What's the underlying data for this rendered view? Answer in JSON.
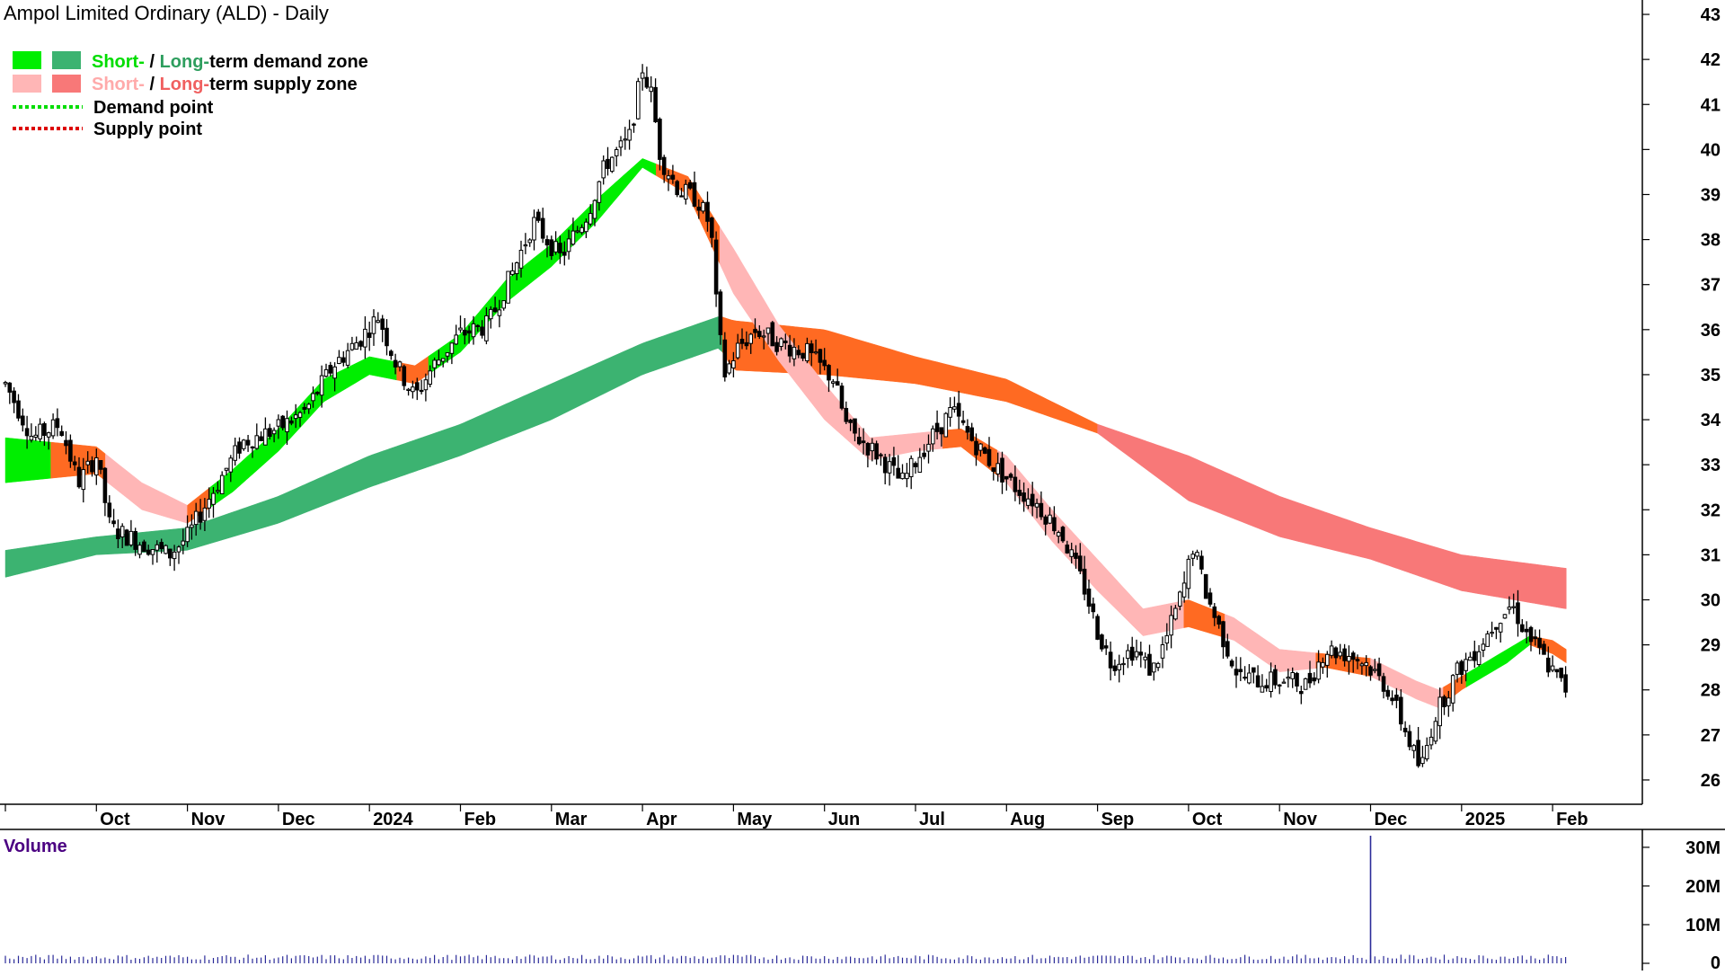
{
  "chart_data": {
    "type": "candlestick",
    "title": "Ampol Limited Ordinary (ALD) - Daily",
    "price_axis": {
      "ylim": [
        25.6,
        43.2
      ],
      "ticks": [
        26,
        27,
        28,
        29,
        30,
        31,
        32,
        33,
        34,
        35,
        36,
        37,
        38,
        39,
        40,
        41,
        42,
        43
      ]
    },
    "x_months": [
      {
        "label": "Oct",
        "m": 1
      },
      {
        "label": "Nov",
        "m": 2
      },
      {
        "label": "Dec",
        "m": 3
      },
      {
        "label": "2024",
        "m": 4
      },
      {
        "label": "Feb",
        "m": 5
      },
      {
        "label": "Mar",
        "m": 6
      },
      {
        "label": "Apr",
        "m": 7
      },
      {
        "label": "May",
        "m": 8
      },
      {
        "label": "Jun",
        "m": 9
      },
      {
        "label": "Jul",
        "m": 10
      },
      {
        "label": "Aug",
        "m": 11
      },
      {
        "label": "Sep",
        "m": 12
      },
      {
        "label": "Oct",
        "m": 13
      },
      {
        "label": "Nov",
        "m": 14
      },
      {
        "label": "Dec",
        "m": 15
      },
      {
        "label": "2025",
        "m": 16
      },
      {
        "label": "Feb",
        "m": 17
      }
    ],
    "price_keypoints": [
      [
        0.0,
        34.8
      ],
      [
        0.3,
        33.6
      ],
      [
        0.6,
        33.9
      ],
      [
        0.8,
        32.6
      ],
      [
        1.0,
        33.2
      ],
      [
        1.15,
        31.6
      ],
      [
        1.45,
        31.3
      ],
      [
        1.8,
        31.0
      ],
      [
        2.0,
        31.4
      ],
      [
        2.25,
        32.3
      ],
      [
        2.6,
        33.5
      ],
      [
        3.0,
        33.8
      ],
      [
        3.3,
        34.2
      ],
      [
        3.6,
        35.2
      ],
      [
        3.9,
        35.8
      ],
      [
        4.1,
        36.3
      ],
      [
        4.3,
        35.2
      ],
      [
        4.5,
        34.5
      ],
      [
        4.7,
        35.2
      ],
      [
        5.0,
        35.9
      ],
      [
        5.3,
        36.1
      ],
      [
        5.6,
        37.4
      ],
      [
        5.8,
        38.4
      ],
      [
        6.1,
        37.6
      ],
      [
        6.4,
        38.6
      ],
      [
        6.6,
        39.7
      ],
      [
        6.85,
        40.2
      ],
      [
        7.0,
        41.8
      ],
      [
        7.1,
        41.2
      ],
      [
        7.2,
        39.8
      ],
      [
        7.4,
        39.1
      ],
      [
        7.6,
        38.9
      ],
      [
        7.75,
        38.3
      ],
      [
        7.82,
        36.3
      ],
      [
        7.9,
        35.0
      ],
      [
        8.05,
        35.6
      ],
      [
        8.25,
        36.0
      ],
      [
        8.5,
        35.7
      ],
      [
        8.8,
        35.5
      ],
      [
        9.1,
        34.9
      ],
      [
        9.25,
        33.8
      ],
      [
        9.6,
        33.2
      ],
      [
        9.85,
        32.6
      ],
      [
        10.1,
        33.4
      ],
      [
        10.4,
        34.2
      ],
      [
        10.6,
        33.6
      ],
      [
        10.85,
        33.0
      ],
      [
        11.1,
        32.5
      ],
      [
        11.3,
        32.2
      ],
      [
        11.6,
        31.5
      ],
      [
        11.85,
        30.3
      ],
      [
        12.0,
        29.3
      ],
      [
        12.15,
        28.6
      ],
      [
        12.4,
        28.9
      ],
      [
        12.6,
        28.4
      ],
      [
        12.75,
        29.1
      ],
      [
        12.95,
        30.3
      ],
      [
        13.05,
        31.2
      ],
      [
        13.2,
        30.1
      ],
      [
        13.35,
        29.3
      ],
      [
        13.55,
        28.3
      ],
      [
        13.8,
        28.2
      ],
      [
        14.1,
        28.2
      ],
      [
        14.3,
        28.1
      ],
      [
        14.5,
        28.9
      ],
      [
        14.75,
        28.8
      ],
      [
        14.95,
        28.6
      ],
      [
        15.2,
        28.0
      ],
      [
        15.4,
        27.0
      ],
      [
        15.55,
        26.2
      ],
      [
        15.7,
        27.4
      ],
      [
        15.95,
        28.4
      ],
      [
        16.2,
        29.0
      ],
      [
        16.4,
        29.6
      ],
      [
        16.55,
        29.9
      ],
      [
        16.7,
        29.3
      ],
      [
        16.9,
        28.7
      ],
      [
        17.0,
        28.4
      ],
      [
        17.15,
        28.0
      ]
    ],
    "short_term_zone": [
      [
        0.0,
        32.6,
        33.6
      ],
      [
        1.0,
        32.8,
        33.4
      ],
      [
        1.5,
        32.0,
        32.6
      ],
      [
        2.0,
        31.7,
        32.1
      ],
      [
        2.5,
        32.4,
        32.9
      ],
      [
        3.0,
        33.3,
        33.8
      ],
      [
        3.5,
        34.4,
        34.9
      ],
      [
        4.0,
        35.0,
        35.4
      ],
      [
        4.5,
        34.8,
        35.2
      ],
      [
        5.0,
        35.5,
        35.9
      ],
      [
        5.5,
        36.6,
        37.1
      ],
      [
        6.0,
        37.4,
        37.9
      ],
      [
        6.5,
        38.4,
        38.9
      ],
      [
        7.0,
        39.6,
        39.8
      ],
      [
        7.5,
        39.0,
        39.4
      ],
      [
        8.0,
        36.8,
        37.8
      ],
      [
        8.5,
        35.3,
        36.1
      ],
      [
        9.0,
        34.0,
        34.8
      ],
      [
        9.5,
        33.1,
        33.6
      ],
      [
        10.0,
        33.3,
        33.7
      ],
      [
        10.5,
        33.4,
        33.8
      ],
      [
        11.0,
        32.6,
        33.2
      ],
      [
        11.5,
        31.3,
        32.0
      ],
      [
        12.0,
        30.2,
        30.9
      ],
      [
        12.5,
        29.2,
        29.8
      ],
      [
        13.0,
        29.4,
        30.0
      ],
      [
        13.5,
        29.1,
        29.6
      ],
      [
        14.0,
        28.4,
        28.9
      ],
      [
        14.5,
        28.5,
        28.8
      ],
      [
        15.0,
        28.3,
        28.7
      ],
      [
        15.5,
        27.8,
        28.2
      ],
      [
        15.75,
        27.6,
        28.0
      ],
      [
        16.0,
        28.0,
        28.3
      ],
      [
        16.5,
        28.6,
        28.9
      ],
      [
        16.75,
        29.0,
        29.2
      ],
      [
        17.0,
        28.8,
        29.1
      ],
      [
        17.15,
        28.6,
        28.9
      ]
    ],
    "long_term_zone": [
      [
        0.0,
        30.5,
        31.1
      ],
      [
        1.0,
        31.0,
        31.4
      ],
      [
        2.0,
        31.1,
        31.6
      ],
      [
        3.0,
        31.7,
        32.3
      ],
      [
        4.0,
        32.5,
        33.2
      ],
      [
        5.0,
        33.2,
        33.9
      ],
      [
        6.0,
        34.0,
        34.8
      ],
      [
        7.0,
        35.0,
        35.7
      ],
      [
        7.85,
        35.6,
        36.3
      ],
      [
        8.0,
        35.1,
        36.2
      ],
      [
        9.0,
        35.0,
        36.0
      ],
      [
        10.0,
        34.8,
        35.4
      ],
      [
        11.0,
        34.4,
        34.9
      ],
      [
        12.0,
        33.7,
        33.9
      ],
      [
        13.0,
        32.2,
        33.2
      ],
      [
        14.0,
        31.4,
        32.3
      ],
      [
        15.0,
        30.9,
        31.6
      ],
      [
        16.0,
        30.2,
        31.0
      ],
      [
        17.15,
        29.8,
        30.7
      ]
    ],
    "segments_short": [
      {
        "from": 0.0,
        "to": 0.5,
        "kind": "demand"
      },
      {
        "from": 0.5,
        "to": 1.1,
        "kind": "supply-dark"
      },
      {
        "from": 1.1,
        "to": 2.0,
        "kind": "supply-light"
      },
      {
        "from": 2.0,
        "to": 2.25,
        "kind": "supply-dark"
      },
      {
        "from": 2.25,
        "to": 4.3,
        "kind": "demand"
      },
      {
        "from": 4.3,
        "to": 4.65,
        "kind": "supply-dark"
      },
      {
        "from": 4.65,
        "to": 7.15,
        "kind": "demand"
      },
      {
        "from": 7.15,
        "to": 7.85,
        "kind": "supply-dark"
      },
      {
        "from": 7.85,
        "to": 10.3,
        "kind": "supply-light"
      },
      {
        "from": 10.3,
        "to": 10.9,
        "kind": "supply-dark"
      },
      {
        "from": 10.9,
        "to": 12.95,
        "kind": "supply-light"
      },
      {
        "from": 12.95,
        "to": 13.4,
        "kind": "supply-dark"
      },
      {
        "from": 13.4,
        "to": 14.4,
        "kind": "supply-light"
      },
      {
        "from": 14.4,
        "to": 15.0,
        "kind": "supply-dark"
      },
      {
        "from": 15.0,
        "to": 15.8,
        "kind": "supply-light"
      },
      {
        "from": 15.8,
        "to": 16.05,
        "kind": "supply-dark"
      },
      {
        "from": 16.05,
        "to": 16.75,
        "kind": "demand"
      },
      {
        "from": 16.75,
        "to": 17.15,
        "kind": "supply-dark"
      }
    ],
    "segments_long": [
      {
        "from": 0.0,
        "to": 7.88,
        "kind": "demand"
      },
      {
        "from": 7.88,
        "to": 12.0,
        "kind": "supply-dark"
      },
      {
        "from": 12.0,
        "to": 17.15,
        "kind": "supply-light"
      }
    ],
    "volume": {
      "label": "Volume",
      "ylim": [
        0,
        33000000
      ],
      "ticks": [
        {
          "v": 0,
          "label": "0"
        },
        {
          "v": 10000000,
          "label": "10M"
        },
        {
          "v": 20000000,
          "label": "20M"
        },
        {
          "v": 30000000,
          "label": "30M"
        }
      ],
      "baseline": 1500000,
      "spike": {
        "m": 15.0,
        "value": 33000000
      }
    },
    "legend": [
      {
        "short_label": "Short-",
        "sep": " / ",
        "long_label": "Long-",
        "rest": "term demand zone",
        "kind": "demand"
      },
      {
        "short_label": "Short-",
        "sep": " / ",
        "long_label": "Long-",
        "rest": "term supply zone",
        "kind": "supply"
      },
      {
        "label": "Demand point",
        "kind": "demand-point"
      },
      {
        "label": "Supply point",
        "kind": "supply-point"
      }
    ],
    "colors": {
      "demand_short": "#00ee00",
      "demand_long": "#3cb371",
      "supply_short_light": "#ffb6b6",
      "supply_long_light": "#f87878",
      "supply_dark": "#ff6a22",
      "candle": "#000000",
      "volume_bar": "#2b2b99",
      "volume_label": "#4b0082",
      "demand_point": "#00dd00",
      "supply_point": "#dd0000",
      "short_text_demand": "#00dd00",
      "long_text_demand": "#2e9e5e",
      "short_text_supply": "#ffaaaa",
      "long_text_supply": "#f06060"
    }
  }
}
